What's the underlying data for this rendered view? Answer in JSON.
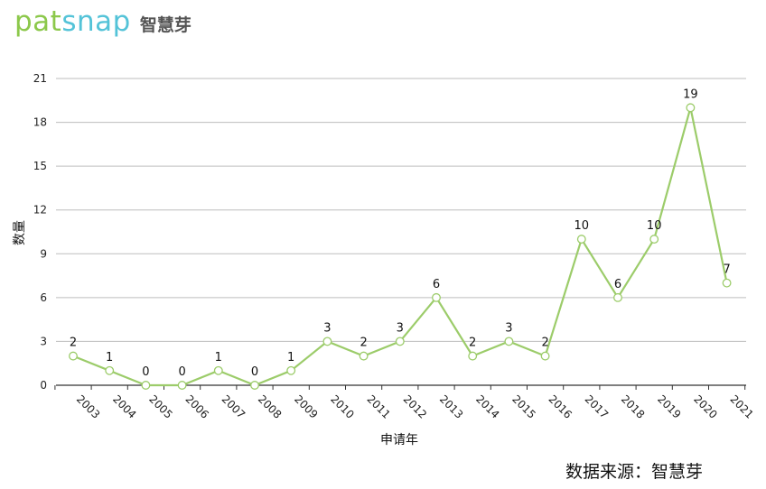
{
  "header": {
    "logo_text": "patsnap",
    "logo_cn": "智慧芽"
  },
  "footer": {
    "source": "数据来源：智慧芽"
  },
  "chart_data": {
    "type": "line",
    "x": [
      "2003",
      "2004",
      "2005",
      "2006",
      "2007",
      "2008",
      "2009",
      "2010",
      "2011",
      "2012",
      "2013",
      "2014",
      "2015",
      "2016",
      "2017",
      "2018",
      "2019",
      "2020",
      "2021"
    ],
    "series": [
      {
        "values": [
          2,
          1,
          0,
          0,
          1,
          0,
          1,
          3,
          2,
          3,
          6,
          2,
          3,
          2,
          10,
          6,
          10,
          19,
          7
        ]
      }
    ],
    "xlabel": "申请年",
    "ylabel": "数量",
    "ylim": [
      0,
      21
    ],
    "yticks": [
      0,
      3,
      6,
      9,
      12,
      15,
      18,
      21
    ],
    "grid": true,
    "data_labels": true,
    "line_color": "#9ccc6a"
  }
}
